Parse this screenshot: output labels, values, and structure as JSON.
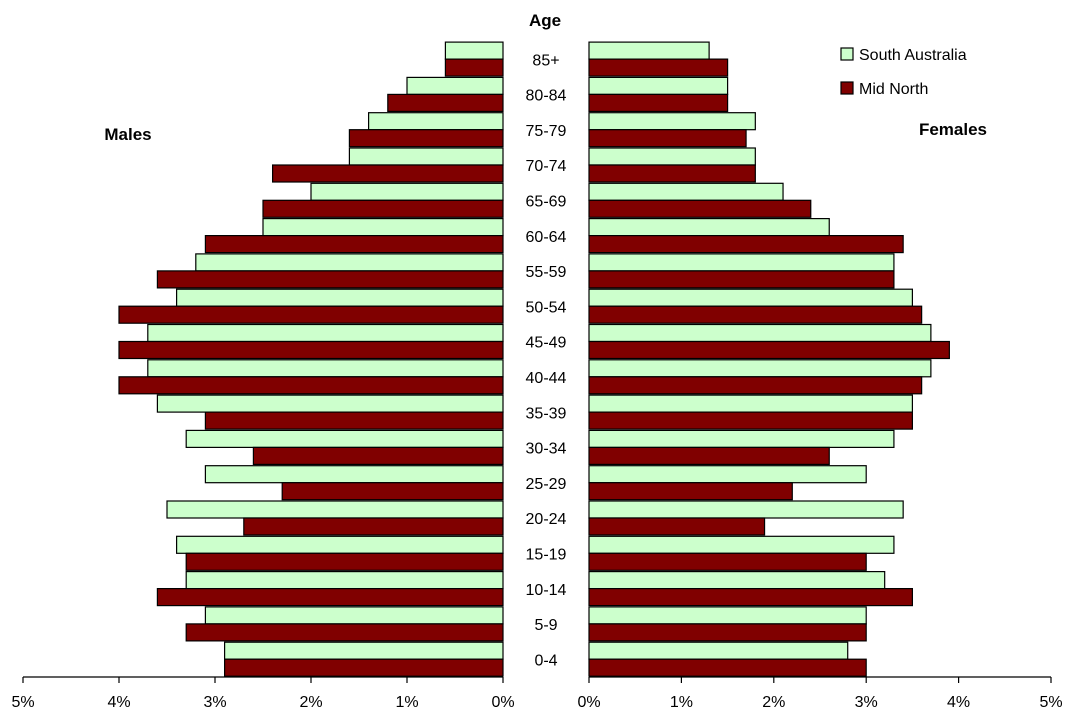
{
  "chart_data": {
    "type": "bar",
    "orientation": "horizontal",
    "layout": "population-pyramid",
    "age_axis_title": "Age",
    "left_panel_title": "Males",
    "right_panel_title": "Females",
    "categories": [
      "0-4",
      "5-9",
      "10-14",
      "15-19",
      "20-24",
      "25-29",
      "30-34",
      "35-39",
      "40-44",
      "45-49",
      "50-54",
      "55-59",
      "60-64",
      "65-69",
      "70-74",
      "75-79",
      "80-84",
      "85+"
    ],
    "x_ticks": [
      "5%",
      "4%",
      "3%",
      "2%",
      "1%",
      "0%"
    ],
    "x_ticks_right": [
      "0%",
      "1%",
      "2%",
      "3%",
      "4%",
      "5%"
    ],
    "xlim": [
      0,
      5
    ],
    "unit": "%",
    "legend_position": "top-right",
    "series": [
      {
        "name": "South Australia",
        "color": "#ccffcc",
        "males": [
          2.9,
          3.1,
          3.3,
          3.4,
          3.5,
          3.1,
          3.3,
          3.6,
          3.7,
          3.7,
          3.4,
          3.2,
          2.5,
          2.0,
          1.6,
          1.4,
          1.0,
          0.6
        ],
        "females": [
          2.8,
          3.0,
          3.2,
          3.3,
          3.4,
          3.0,
          3.3,
          3.5,
          3.7,
          3.7,
          3.5,
          3.3,
          2.6,
          2.1,
          1.8,
          1.8,
          1.5,
          1.3
        ]
      },
      {
        "name": "Mid North",
        "color": "#800000",
        "males": [
          2.9,
          3.3,
          3.6,
          3.3,
          2.7,
          2.3,
          2.6,
          3.1,
          4.0,
          4.0,
          4.0,
          3.6,
          3.1,
          2.5,
          2.4,
          1.6,
          1.2,
          0.6
        ],
        "females": [
          3.0,
          3.0,
          3.5,
          3.0,
          1.9,
          2.2,
          2.6,
          3.5,
          3.6,
          3.9,
          3.6,
          3.3,
          3.4,
          2.4,
          1.8,
          1.7,
          1.5,
          1.5
        ]
      }
    ]
  }
}
